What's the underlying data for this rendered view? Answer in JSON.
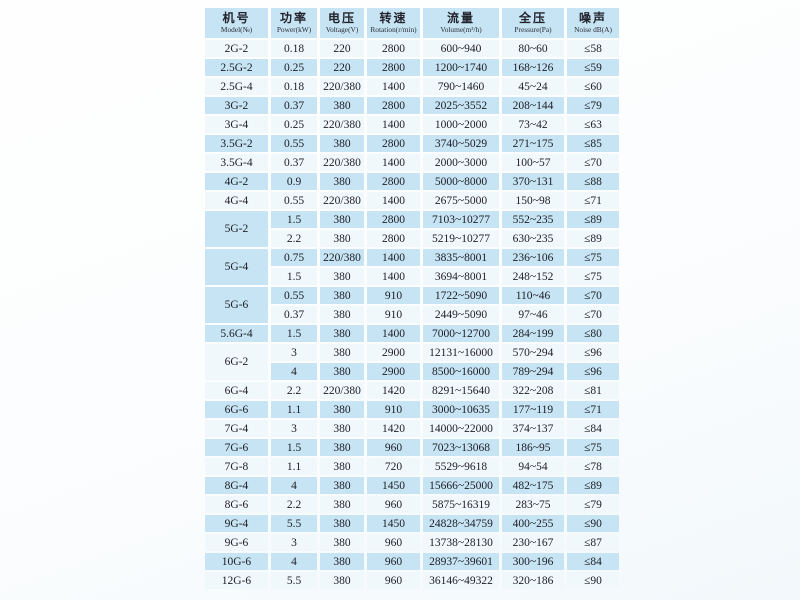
{
  "colors": {
    "cell_blue": "#c6e4f3",
    "cell_light": "#f1f8fc",
    "text_dark": "#1d1d26"
  },
  "table": {
    "headers": [
      {
        "key": "model",
        "zh": "机号",
        "en": "Model(№)"
      },
      {
        "key": "power",
        "zh": "功率",
        "en": "Power(kW)"
      },
      {
        "key": "voltage",
        "zh": "电压",
        "en": "Voltage(V)"
      },
      {
        "key": "rotation",
        "zh": "转速",
        "en": "Rotation(r/min)"
      },
      {
        "key": "volume",
        "zh": "流量",
        "en": "Volume(m³/h)"
      },
      {
        "key": "pressure",
        "zh": "全压",
        "en": "Pressure(Pa)"
      },
      {
        "key": "noise",
        "zh": "噪声",
        "en": "Noise dB(A)"
      }
    ],
    "groups": [
      {
        "model": "2G-2",
        "rows": [
          [
            "0.18",
            "220",
            "2800",
            "600~940",
            "80~60",
            "≤58"
          ]
        ]
      },
      {
        "model": "2.5G-2",
        "rows": [
          [
            "0.25",
            "220",
            "2800",
            "1200~1740",
            "168~126",
            "≤59"
          ]
        ]
      },
      {
        "model": "2.5G-4",
        "rows": [
          [
            "0.18",
            "220/380",
            "1400",
            "790~1460",
            "45~24",
            "≤60"
          ]
        ]
      },
      {
        "model": "3G-2",
        "rows": [
          [
            "0.37",
            "380",
            "2800",
            "2025~3552",
            "208~144",
            "≤79"
          ]
        ]
      },
      {
        "model": "3G-4",
        "rows": [
          [
            "0.25",
            "220/380",
            "1400",
            "1000~2000",
            "73~42",
            "≤63"
          ]
        ]
      },
      {
        "model": "3.5G-2",
        "rows": [
          [
            "0.55",
            "380",
            "2800",
            "3740~5029",
            "271~175",
            "≤85"
          ]
        ]
      },
      {
        "model": "3.5G-4",
        "rows": [
          [
            "0.37",
            "220/380",
            "1400",
            "2000~3000",
            "100~57",
            "≤70"
          ]
        ]
      },
      {
        "model": "4G-2",
        "rows": [
          [
            "0.9",
            "380",
            "2800",
            "5000~8000",
            "370~131",
            "≤88"
          ]
        ]
      },
      {
        "model": "4G-4",
        "rows": [
          [
            "0.55",
            "220/380",
            "1400",
            "2675~5000",
            "150~98",
            "≤71"
          ]
        ]
      },
      {
        "model": "5G-2",
        "rows": [
          [
            "1.5",
            "380",
            "2800",
            "7103~10277",
            "552~235",
            "≤89"
          ],
          [
            "2.2",
            "380",
            "2800",
            "5219~10277",
            "630~235",
            "≤89"
          ]
        ]
      },
      {
        "model": "5G-4",
        "rows": [
          [
            "0.75",
            "220/380",
            "1400",
            "3835~8001",
            "236~106",
            "≤75"
          ],
          [
            "1.5",
            "380",
            "1400",
            "3694~8001",
            "248~152",
            "≤75"
          ]
        ]
      },
      {
        "model": "5G-6",
        "rows": [
          [
            "0.55",
            "380",
            "910",
            "1722~5090",
            "110~46",
            "≤70"
          ],
          [
            "0.37",
            "380",
            "910",
            "2449~5090",
            "97~46",
            "≤70"
          ]
        ]
      },
      {
        "model": "5.6G-4",
        "rows": [
          [
            "1.5",
            "380",
            "1400",
            "7000~12700",
            "284~199",
            "≤80"
          ]
        ]
      },
      {
        "model": "6G-2",
        "rows": [
          [
            "3",
            "380",
            "2900",
            "12131~16000",
            "570~294",
            "≤96"
          ],
          [
            "4",
            "380",
            "2900",
            "8500~16000",
            "789~294",
            "≤96"
          ]
        ]
      },
      {
        "model": "6G-4",
        "rows": [
          [
            "2.2",
            "220/380",
            "1420",
            "8291~15640",
            "322~208",
            "≤81"
          ]
        ]
      },
      {
        "model": "6G-6",
        "rows": [
          [
            "1.1",
            "380",
            "910",
            "3000~10635",
            "177~119",
            "≤71"
          ]
        ]
      },
      {
        "model": "7G-4",
        "rows": [
          [
            "3",
            "380",
            "1420",
            "14000~22000",
            "374~137",
            "≤84"
          ]
        ]
      },
      {
        "model": "7G-6",
        "rows": [
          [
            "1.5",
            "380",
            "960",
            "7023~13068",
            "186~95",
            "≤75"
          ]
        ]
      },
      {
        "model": "7G-8",
        "rows": [
          [
            "1.1",
            "380",
            "720",
            "5529~9618",
            "94~54",
            "≤78"
          ]
        ]
      },
      {
        "model": "8G-4",
        "rows": [
          [
            "4",
            "380",
            "1450",
            "15666~25000",
            "482~175",
            "≤89"
          ]
        ]
      },
      {
        "model": "8G-6",
        "rows": [
          [
            "2.2",
            "380",
            "960",
            "5875~16319",
            "283~75",
            "≤79"
          ]
        ]
      },
      {
        "model": "9G-4",
        "rows": [
          [
            "5.5",
            "380",
            "1450",
            "24828~34759",
            "400~255",
            "≤90"
          ]
        ]
      },
      {
        "model": "9G-6",
        "rows": [
          [
            "3",
            "380",
            "960",
            "13738~28130",
            "230~167",
            "≤87"
          ]
        ]
      },
      {
        "model": "10G-6",
        "rows": [
          [
            "4",
            "380",
            "960",
            "28937~39601",
            "300~196",
            "≤84"
          ]
        ]
      },
      {
        "model": "12G-6",
        "rows": [
          [
            "5.5",
            "380",
            "960",
            "36146~49322",
            "320~186",
            "≤90"
          ]
        ]
      }
    ]
  }
}
